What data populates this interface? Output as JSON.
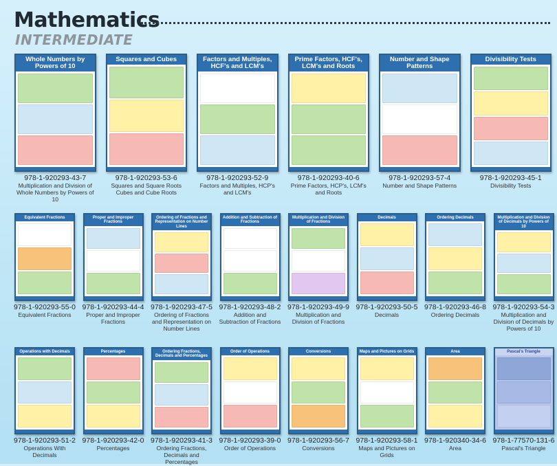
{
  "header": {
    "title": "Mathematics",
    "subtitle": "INTERMEDIATE"
  },
  "rows": [
    [
      {
        "poster_title": "Whole Numbers by Powers of 10",
        "isbn": "978-1-920293-43-7",
        "caption": "Multiplication and Division of Whole Numbers by Powers of 10",
        "colors": [
          "#bfe3a8",
          "#cfe7f5",
          "#f6b9b4"
        ]
      },
      {
        "poster_title": "Squares and Cubes",
        "isbn": "978-1-920293-53-6",
        "caption": "Squares and Square Roots Cubes and Cube Roots",
        "colors": [
          "#bfe3a8",
          "#fff2a6",
          "#f6b9b4"
        ]
      },
      {
        "poster_title": "Factors and Multiples, HCF's and LCM's",
        "isbn": "978-1-920293-52-9",
        "caption": "Factors and Multiples, HCP's and LCM's",
        "colors": [
          "#ffffff",
          "#bfe3a8",
          "#cfe7f5"
        ]
      },
      {
        "poster_title": "Prime Factors, HCF's, LCM's and Roots",
        "isbn": "978-1-920293-40-6",
        "caption": "Prime Factors, HCP's, LCM's and Roots",
        "colors": [
          "#fff2a6",
          "#bfe3a8",
          "#bfe3a8"
        ]
      },
      {
        "poster_title": "Number and Shape Patterns",
        "isbn": "978-1-920293-57-4",
        "caption": "Number and Shape Patterns",
        "colors": [
          "#cfe7f5",
          "#ffffff",
          "#f6b9b4"
        ]
      },
      {
        "poster_title": "Divisibility Tests",
        "isbn": "978-1-920293-45-1",
        "caption": "Divisibility Tests",
        "colors": [
          "#bfe3a8",
          "#fff2a6",
          "#f6b9b4",
          "#cfe7f5"
        ]
      }
    ],
    [
      {
        "poster_title": "Equivalent Fractions",
        "isbn": "978-1-920293-55-0",
        "caption": "Equivalent Fractions",
        "colors": [
          "#ffffff",
          "#f7c37a",
          "#bfe3a8"
        ]
      },
      {
        "poster_title": "Proper and Improper Fractions",
        "isbn": "978-1-920293-44-4",
        "caption": "Proper and Improper Fractions",
        "colors": [
          "#cfe7f5",
          "#ffffff",
          "#bfe3a8"
        ]
      },
      {
        "poster_title": "Ordering of Fractions and Representation on Number Lines",
        "isbn": "978-1-920293-47-5",
        "caption": "Ordering of Fractions and Representation on Number Lines",
        "colors": [
          "#fff2a6",
          "#f6b9b4",
          "#cfe7f5"
        ]
      },
      {
        "poster_title": "Addition and Subtraction of Fractions",
        "isbn": "978-1-920293-48-2",
        "caption": "Addition and Subtraction of Fractions",
        "colors": [
          "#ffffff",
          "#ffffff",
          "#bfe3a8"
        ]
      },
      {
        "poster_title": "Multiplication and Division of Fractions",
        "isbn": "978-1-920293-49-9",
        "caption": "Multiplication and Division of Fractions",
        "colors": [
          "#bfe3a8",
          "#ffffff",
          "#e2c8f0"
        ]
      },
      {
        "poster_title": "Decimals",
        "isbn": "978-1-920293-50-5",
        "caption": "Decimals",
        "colors": [
          "#fff2a6",
          "#cfe7f5",
          "#f6b9b4"
        ]
      },
      {
        "poster_title": "Ordering Decimals",
        "isbn": "978-1-920293-46-8",
        "caption": "Ordering Decimals",
        "colors": [
          "#cfe7f5",
          "#fff2a6",
          "#bfe3a8"
        ]
      },
      {
        "poster_title": "Multiplication and Division of Decimals by Powers of 10",
        "isbn": "978-1-920293-54-3",
        "caption": "Multiplication and Division of Decimals by Powers of 10",
        "colors": [
          "#fff2a6",
          "#cfe7f5",
          "#bfe3a8"
        ]
      }
    ],
    [
      {
        "poster_title": "Operations with Decimals",
        "isbn": "978-1-920293-51-2",
        "caption": "Operations With Decimals",
        "colors": [
          "#bfe3a8",
          "#cfe7f5",
          "#fff2a6"
        ]
      },
      {
        "poster_title": "Percentages",
        "isbn": "978-1-920293-42-0",
        "caption": "Percentages",
        "colors": [
          "#f6b9b4",
          "#bfe3a8",
          "#fff2a6"
        ]
      },
      {
        "poster_title": "Ordering Fractions, Decimals and Percentages",
        "isbn": "978-1-920293-41-3",
        "caption": "Ordering Fractions, Decimals and Percentages",
        "colors": [
          "#bfe3a8",
          "#cfe7f5",
          "#f6b9b4"
        ]
      },
      {
        "poster_title": "Order of Operations",
        "isbn": "978-1-920293-39-0",
        "caption": "Order of Operations",
        "colors": [
          "#fff2a6",
          "#ffffff",
          "#f6b9b4"
        ]
      },
      {
        "poster_title": "Conversions",
        "isbn": "978-1-920293-56-7",
        "caption": "Conversions",
        "colors": [
          "#fff2a6",
          "#bfe3a8",
          "#f7c37a"
        ]
      },
      {
        "poster_title": "Maps and Pictures on Grids",
        "isbn": "978-1-920293-58-1",
        "caption": "Maps and Pictures on Grids",
        "colors": [
          "#fff2a6",
          "#ffffff",
          "#bfe3a8"
        ]
      },
      {
        "poster_title": "Area",
        "isbn": "978-1-920340-34-6",
        "caption": "Area",
        "colors": [
          "#f7c37a",
          "#bfe3a8",
          "#fff2a6"
        ]
      },
      {
        "poster_title": "Pascal's Triangle",
        "isbn": "978-1-77570-131-6",
        "caption": "Pascal's Triangle",
        "colors": [
          "#8fa6d8",
          "#a9b9e6",
          "#c4d0f0"
        ]
      }
    ]
  ]
}
